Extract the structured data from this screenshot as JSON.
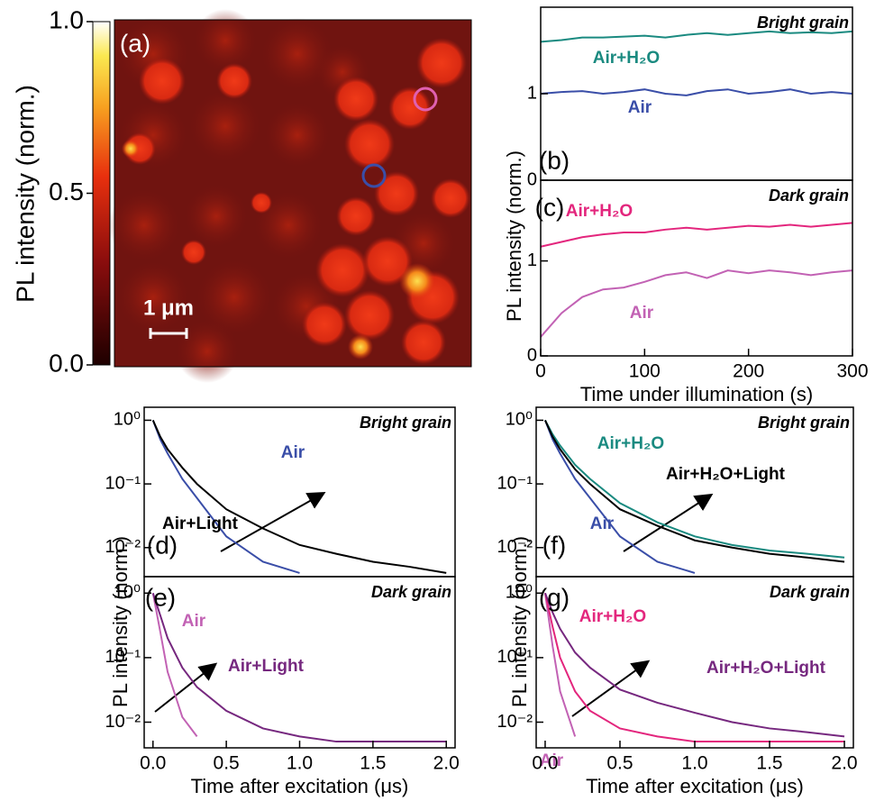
{
  "chart_data": [
    {
      "type": "heatmap",
      "panel_label": "(a)",
      "scale_bar": "1 μm",
      "colorbar": {
        "label": "PL intensity (norm.)",
        "lim": [
          0,
          1
        ],
        "ticks": [
          {
            "value": 0,
            "label": "0.0"
          },
          {
            "value": 0.5,
            "label": "0.5"
          },
          {
            "value": 1,
            "label": "1.0"
          }
        ]
      }
    },
    {
      "type": "line",
      "panel_label": "(b)",
      "annotation": "Bright grain",
      "x": [
        0,
        20,
        40,
        60,
        80,
        100,
        120,
        140,
        160,
        180,
        200,
        220,
        240,
        260,
        280,
        300
      ],
      "series": [
        {
          "name": "Air+H₂O",
          "color": "#1a8a80",
          "values": [
            1.6,
            1.62,
            1.65,
            1.65,
            1.66,
            1.67,
            1.65,
            1.68,
            1.7,
            1.68,
            1.7,
            1.72,
            1.7,
            1.71,
            1.7,
            1.72
          ]
        },
        {
          "name": "Air",
          "color": "#3a4ea8",
          "values": [
            1.0,
            1.02,
            1.03,
            1.0,
            1.02,
            1.05,
            1.0,
            0.98,
            1.03,
            1.05,
            1.0,
            1.02,
            1.05,
            1.0,
            1.02,
            1.0
          ]
        }
      ],
      "xlim": [
        0,
        300
      ],
      "ylim": [
        0,
        2
      ],
      "yticks": [
        0,
        1
      ]
    },
    {
      "type": "line",
      "panel_label": "(c)",
      "annotation": "Dark grain",
      "x": [
        0,
        20,
        40,
        60,
        80,
        100,
        120,
        140,
        160,
        180,
        200,
        220,
        240,
        260,
        280,
        300
      ],
      "series": [
        {
          "name": "Air+H₂O",
          "color": "#e3267d",
          "values": [
            1.15,
            1.2,
            1.25,
            1.28,
            1.3,
            1.3,
            1.33,
            1.35,
            1.33,
            1.35,
            1.37,
            1.36,
            1.38,
            1.36,
            1.38,
            1.4
          ]
        },
        {
          "name": "Air",
          "color": "#c262b4",
          "values": [
            0.2,
            0.45,
            0.62,
            0.7,
            0.72,
            0.78,
            0.85,
            0.88,
            0.82,
            0.9,
            0.87,
            0.9,
            0.88,
            0.85,
            0.88,
            0.9
          ]
        }
      ],
      "xlim": [
        0,
        300
      ],
      "ylim": [
        0,
        1.85
      ],
      "yticks": [
        0,
        1
      ],
      "xticks": [
        0,
        100,
        200,
        300
      ],
      "xlabel": "Time under illumination (s)",
      "ylabel": "PL intensity (norm.)"
    },
    {
      "type": "line",
      "log_y": true,
      "panel_label": "(d)",
      "annotation": "Bright grain",
      "x": [
        0,
        0.05,
        0.1,
        0.2,
        0.3,
        0.5,
        0.75,
        1,
        1.25,
        1.5,
        1.75,
        2
      ],
      "series": [
        {
          "name": "Air",
          "color": "#3a4ea8",
          "values": [
            1,
            0.5,
            0.3,
            0.12,
            0.06,
            0.015,
            0.006,
            0.004,
            null,
            null,
            null,
            null
          ]
        },
        {
          "name": "Air+Light",
          "color": "#000000",
          "values": [
            1,
            0.55,
            0.35,
            0.18,
            0.1,
            0.04,
            0.02,
            0.011,
            0.008,
            0.006,
            0.005,
            0.004
          ]
        }
      ],
      "xlim": [
        -0.06,
        2.06
      ],
      "ylim": [
        0.0035,
        1.6
      ],
      "yticks": [
        {
          "value": 1,
          "label": "10⁰"
        },
        {
          "value": 0.1,
          "label": "10⁻¹"
        },
        {
          "value": 0.01,
          "label": "10⁻²"
        }
      ]
    },
    {
      "type": "line",
      "log_y": true,
      "panel_label": "(e)",
      "annotation": "Dark grain",
      "x": [
        0,
        0.05,
        0.1,
        0.2,
        0.3,
        0.5,
        0.75,
        1,
        1.25,
        1.5,
        1.75,
        2
      ],
      "series": [
        {
          "name": "Air",
          "color": "#c262b4",
          "values": [
            1,
            0.25,
            0.06,
            0.012,
            0.006,
            null,
            null,
            null,
            null,
            null,
            null,
            null
          ]
        },
        {
          "name": "Air+Light",
          "color": "#76287f",
          "values": [
            1,
            0.45,
            0.2,
            0.07,
            0.035,
            0.015,
            0.008,
            0.006,
            0.005,
            0.005,
            0.005,
            0.005
          ]
        }
      ],
      "xlim": [
        -0.06,
        2.06
      ],
      "ylim": [
        0.004,
        1.8
      ],
      "yticks": [
        {
          "value": 1,
          "label": "10⁰"
        },
        {
          "value": 0.1,
          "label": "10⁻¹"
        },
        {
          "value": 0.01,
          "label": "10⁻²"
        }
      ],
      "xticks": [
        {
          "value": 0,
          "label": "0.0"
        },
        0.5,
        {
          "value": 1,
          "label": "1.0"
        },
        1.5,
        {
          "value": 2,
          "label": "2.0"
        }
      ],
      "xlabel": "Time after excitation (μs)",
      "ylabel": "PL intensity (norm.)"
    },
    {
      "type": "line",
      "log_y": true,
      "panel_label": "(f)",
      "annotation": "Bright grain",
      "x": [
        0,
        0.05,
        0.1,
        0.2,
        0.3,
        0.5,
        0.75,
        1,
        1.25,
        1.5,
        1.75,
        2
      ],
      "series": [
        {
          "name": "Air",
          "color": "#3a4ea8",
          "values": [
            1,
            0.5,
            0.3,
            0.12,
            0.06,
            0.015,
            0.006,
            0.004,
            null,
            null,
            null,
            null
          ]
        },
        {
          "name": "Air+H₂O",
          "color": "#1a8a80",
          "values": [
            1,
            0.6,
            0.4,
            0.2,
            0.12,
            0.05,
            0.025,
            0.015,
            0.011,
            0.009,
            0.008,
            0.007
          ]
        },
        {
          "name": "Air+H₂O+Light",
          "color": "#000000",
          "values": [
            1,
            0.55,
            0.35,
            0.17,
            0.1,
            0.04,
            0.022,
            0.013,
            0.01,
            0.008,
            0.007,
            0.006
          ]
        }
      ],
      "xlim": [
        -0.06,
        2.06
      ],
      "ylim": [
        0.0035,
        1.6
      ],
      "yticks": [
        {
          "value": 1,
          "label": "10⁰"
        },
        {
          "value": 0.1,
          "label": "10⁻¹"
        },
        {
          "value": 0.01,
          "label": "10⁻²"
        }
      ]
    },
    {
      "type": "line",
      "log_y": true,
      "panel_label": "(g)",
      "annotation": "Dark grain",
      "x": [
        0,
        0.05,
        0.1,
        0.2,
        0.3,
        0.5,
        0.75,
        1,
        1.25,
        1.5,
        1.75,
        2
      ],
      "series": [
        {
          "name": "Air",
          "color": "#c262b4",
          "values": [
            1,
            0.15,
            0.03,
            0.006,
            null,
            null,
            null,
            null,
            null,
            null,
            null,
            null
          ]
        },
        {
          "name": "Air+H₂O",
          "color": "#e3267d",
          "values": [
            1,
            0.3,
            0.1,
            0.03,
            0.015,
            0.008,
            0.006,
            0.005,
            0.005,
            0.005,
            0.005,
            0.005
          ]
        },
        {
          "name": "Air+H₂O+Light",
          "color": "#76287f",
          "values": [
            1,
            0.5,
            0.28,
            0.12,
            0.07,
            0.032,
            0.02,
            0.014,
            0.01,
            0.008,
            0.007,
            0.006
          ]
        }
      ],
      "xlim": [
        -0.06,
        2.06
      ],
      "ylim": [
        0.004,
        1.8
      ],
      "yticks": [
        {
          "value": 1,
          "label": "10⁰"
        },
        {
          "value": 0.1,
          "label": "10⁻¹"
        },
        {
          "value": 0.01,
          "label": "10⁻²"
        }
      ],
      "xticks": [
        {
          "value": 0,
          "label": "0.0"
        },
        0.5,
        {
          "value": 1,
          "label": "1.0"
        },
        1.5,
        {
          "value": 2,
          "label": "2.0"
        }
      ],
      "xlabel": "Time after excitation (μs)",
      "ylabel": "PL intensity (norm.)"
    }
  ]
}
